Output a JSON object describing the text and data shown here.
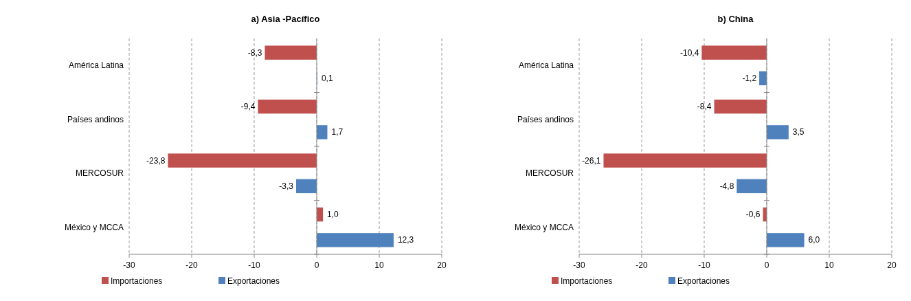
{
  "chart_data": [
    {
      "type": "bar",
      "orientation": "horizontal",
      "title": "a) Asia -Pacífico",
      "categories": [
        "América Latina",
        "Países andinos",
        "MERCOSUR",
        "México y MCCA"
      ],
      "series": [
        {
          "name": "Importaciones",
          "color": "#c0504d",
          "values": [
            -8.3,
            -9.4,
            -23.8,
            1.0
          ],
          "value_labels": [
            "-8,3",
            "-9,4",
            "-23,8",
            "1,0"
          ]
        },
        {
          "name": "Exportaciones",
          "color": "#4f81bd",
          "values": [
            0.1,
            1.7,
            -3.3,
            12.3
          ],
          "value_labels": [
            "0,1",
            "1,7",
            "-3,3",
            "12,3"
          ]
        }
      ],
      "xlim": [
        -30,
        20
      ],
      "xticks": [
        -30,
        -20,
        -10,
        0,
        10,
        20
      ],
      "grid": "x",
      "legend": "bottom"
    },
    {
      "type": "bar",
      "orientation": "horizontal",
      "title": "b) China",
      "categories": [
        "América Latina",
        "Países andinos",
        "MERCOSUR",
        "México y MCCA"
      ],
      "series": [
        {
          "name": "Importaciones",
          "color": "#c0504d",
          "values": [
            -10.4,
            -8.4,
            -26.1,
            -0.6
          ],
          "value_labels": [
            "-10,4",
            "-8,4",
            "-26,1",
            "-0,6"
          ]
        },
        {
          "name": "Exportaciones",
          "color": "#4f81bd",
          "values": [
            -1.2,
            3.5,
            -4.8,
            6.0
          ],
          "value_labels": [
            "-1,2",
            "3,5",
            "-4,8",
            "6,0"
          ]
        }
      ],
      "xlim": [
        -30,
        20
      ],
      "xticks": [
        -30,
        -20,
        -10,
        0,
        10,
        20
      ],
      "grid": "x",
      "legend": "bottom"
    }
  ]
}
